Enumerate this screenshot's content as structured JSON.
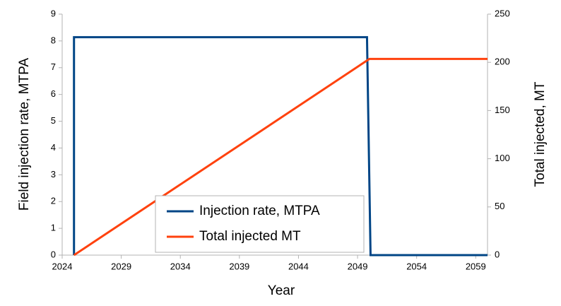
{
  "chart_data": {
    "type": "line",
    "x_label": "Year",
    "y_label": "Field injection rate, MTPA",
    "y2_label": "Total injected, MT",
    "xlim": [
      2024,
      2060
    ],
    "xticks": [
      2024,
      2029,
      2034,
      2039,
      2044,
      2049,
      2054,
      2059
    ],
    "ylim": [
      0,
      9
    ],
    "yticks": [
      0,
      1,
      2,
      3,
      4,
      5,
      6,
      7,
      8,
      9
    ],
    "y2lim": [
      0,
      250
    ],
    "y2ticks": [
      0,
      50,
      100,
      150,
      200,
      250
    ],
    "legend": "lower-left",
    "series": [
      {
        "name": "Injection rate, MTPA",
        "color": "#004586",
        "x": [
          2025,
          2025,
          2049.8,
          2050.1,
          2060
        ],
        "values": [
          0,
          8.14,
          8.14,
          0,
          0
        ]
      },
      {
        "name": "Total injected MT",
        "color": "#ff420e",
        "axis": "y2",
        "x": [
          2025,
          2050,
          2060
        ],
        "values": [
          0,
          203.5,
          203.5
        ]
      }
    ]
  }
}
